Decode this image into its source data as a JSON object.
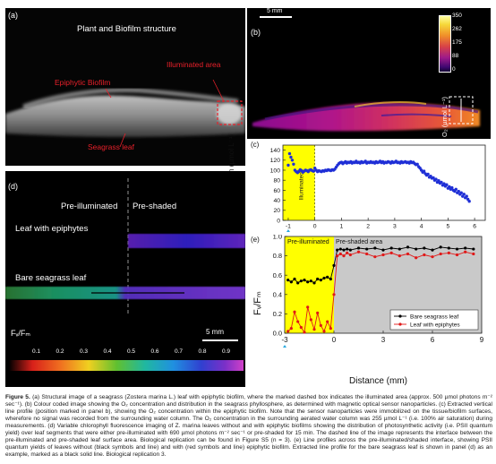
{
  "panel_a": {
    "letter": "(a)",
    "title": "Plant and Biofilm structure",
    "label_epiphytic": "Epiphytic Biofilm",
    "label_illuminated": "Illuminated area",
    "label_seagrass": "Seagrass leaf"
  },
  "panel_b": {
    "letter": "(b)",
    "scalebar": "5 mm",
    "colorbar_ticks": [
      "350",
      "262",
      "175",
      "88",
      "0"
    ],
    "colorbar_title": "O₂ (µmol L⁻¹)"
  },
  "panel_c": {
    "letter": "(c)",
    "ylabel": "O₂ concentration (µmol L⁻¹)",
    "yticks": [
      "140",
      "120",
      "100",
      "80",
      "60",
      "40",
      "20",
      "0"
    ],
    "xticks": [
      "-1",
      "0",
      "1",
      "2",
      "3",
      "4",
      "5",
      "6"
    ],
    "illuminated_label": "Illuminated",
    "color_points": "#1f2fd6",
    "color_illuminated": "#ffff00"
  },
  "panel_d": {
    "letter": "(d)",
    "pre_illuminated": "Pre-illuminated",
    "pre_shaded": "Pre-shaded",
    "leaf_epiphytes": "Leaf with epiphytes",
    "bare_leaf": "Bare seagrass leaf",
    "scalebar": "5 mm",
    "colorbar_title": "Fᵥ/Fₘ",
    "colorbar_ticks": [
      "0.1",
      "0.2",
      "0.3",
      "0.4",
      "0.5",
      "0.6",
      "0.7",
      "0.8",
      "0.9"
    ]
  },
  "panel_e": {
    "letter": "(e)",
    "pre_illuminated": "Pre-illuminated",
    "pre_shaded_area": "Pre-shaded area",
    "ylabel": "Fᵥ/Fₘ",
    "yticks": [
      "1.0",
      "0.8",
      "0.6",
      "0.4",
      "0.2",
      "0.0"
    ],
    "xticks": [
      "-3",
      "0",
      "3",
      "6",
      "9"
    ],
    "xlabel": "Distance (mm)",
    "legend_bare": "Bare seagrass leaf",
    "legend_epi": "Leaf with epiphytes",
    "color_bare": "#000000",
    "color_epi": "#e01818",
    "color_shaded_bg": "#c9c9c9",
    "color_illuminated": "#ffff00"
  },
  "caption": {
    "figure_label": "Figure 5.",
    "text": "(a) Structural image of a seagrass (Zostera marina L.) leaf with epiphytic biofilm, where the marked dashed box indicates the illuminated area (approx. 500 µmol photons m⁻² sec⁻¹). (b) Colour coded image showing the O₂ concentration and distribution in the seagrass phyllosphere, as determined with magnetic optical sensor nanoparticles. (c) Extracted vertical line profile (position marked in panel b), showing the O₂ concentration within the epiphytic biofilm. Note that the sensor nanoparticles were immobilized on the tissue/biofilm surfaces, wherefore no signal was recorded from the surrounding water column. The O₂ concentration in the surrounding aerated water column was 255 µmol L⁻¹ (i.e. 100% air saturation) during measurements. (d) Variable chlorophyll fluorescence imaging of Z. marina leaves without and with epiphytic biofilms showing the distribution of photosynthetic activity (i.e. PSII quantum yield) over leaf segments that were either pre-illuminated with 690 µmol photons m⁻² sec⁻¹ or pre-shaded for 15 min. The dashed line of the image represents the interface between the pre-illuminated and pre-shaded leaf surface area. Biological replication can be found in Figure S5 (n = 3). (e) Line profiles across the pre-illuminated/shaded interface, showing PSII quantum yields of leaves without (black symbols and line) and with (red symbols and line) epiphytic biofilm. Extracted line profile for the bare seagrass leaf is shown in panel (d) as an example, marked as a black solid line. Biological replication 3."
  },
  "chart_data": [
    {
      "type": "scatter",
      "panel": "(c)",
      "ylabel": "O₂ concentration (µmol L⁻¹)",
      "xlim": [
        -1.2,
        6.4
      ],
      "ylim": [
        0,
        150
      ],
      "illuminated_region": [
        -1.2,
        0
      ],
      "series": [
        {
          "points": [
            [
              -1.0,
              110
            ],
            [
              -0.95,
              133
            ],
            [
              -0.9,
              126
            ],
            [
              -0.85,
              120
            ],
            [
              -0.8,
              112
            ],
            [
              -0.75,
              100
            ],
            [
              -0.7,
              97
            ],
            [
              -0.65,
              95
            ],
            [
              -0.6,
              98
            ],
            [
              -0.55,
              101
            ],
            [
              -0.5,
              99
            ],
            [
              -0.45,
              96
            ],
            [
              -0.4,
              98
            ],
            [
              -0.35,
              100
            ],
            [
              -0.3,
              99
            ],
            [
              -0.25,
              97
            ],
            [
              -0.2,
              100
            ],
            [
              -0.15,
              101
            ],
            [
              -0.1,
              99
            ],
            [
              -0.05,
              98
            ],
            [
              0.0,
              104
            ],
            [
              0.05,
              100
            ],
            [
              0.1,
              97
            ],
            [
              0.15,
              99
            ],
            [
              0.2,
              98
            ],
            [
              0.25,
              97
            ],
            [
              0.3,
              99
            ],
            [
              0.35,
              98
            ],
            [
              0.4,
              100
            ],
            [
              0.45,
              99
            ],
            [
              0.5,
              101
            ],
            [
              0.55,
              100
            ],
            [
              0.6,
              99
            ],
            [
              0.65,
              101
            ],
            [
              0.7,
              100
            ],
            [
              0.75,
              102
            ],
            [
              0.8,
              106
            ],
            [
              0.85,
              110
            ],
            [
              0.9,
              113
            ],
            [
              0.95,
              115
            ],
            [
              1.0,
              116
            ],
            [
              1.05,
              113
            ],
            [
              1.1,
              115
            ],
            [
              1.15,
              117
            ],
            [
              1.2,
              114
            ],
            [
              1.25,
              116
            ],
            [
              1.3,
              115
            ],
            [
              1.35,
              117
            ],
            [
              1.4,
              114
            ],
            [
              1.45,
              116
            ],
            [
              1.5,
              115
            ],
            [
              1.55,
              118
            ],
            [
              1.6,
              115
            ],
            [
              1.65,
              116
            ],
            [
              1.7,
              114
            ],
            [
              1.75,
              117
            ],
            [
              1.8,
              115
            ],
            [
              1.85,
              116
            ],
            [
              1.9,
              118
            ],
            [
              1.95,
              114
            ],
            [
              2.0,
              116
            ],
            [
              2.05,
              115
            ],
            [
              2.1,
              117
            ],
            [
              2.15,
              115
            ],
            [
              2.2,
              116
            ],
            [
              2.25,
              114
            ],
            [
              2.3,
              117
            ],
            [
              2.35,
              115
            ],
            [
              2.4,
              116
            ],
            [
              2.45,
              118
            ],
            [
              2.5,
              115
            ],
            [
              2.55,
              117
            ],
            [
              2.6,
              114
            ],
            [
              2.65,
              116
            ],
            [
              2.7,
              115
            ],
            [
              2.75,
              117
            ],
            [
              2.8,
              116
            ],
            [
              2.85,
              114
            ],
            [
              2.9,
              117
            ],
            [
              2.95,
              115
            ],
            [
              3.0,
              116
            ],
            [
              3.05,
              118
            ],
            [
              3.1,
              115
            ],
            [
              3.15,
              116
            ],
            [
              3.2,
              114
            ],
            [
              3.25,
              117
            ],
            [
              3.3,
              115
            ],
            [
              3.35,
              116
            ],
            [
              3.4,
              117
            ],
            [
              3.45,
              115
            ],
            [
              3.5,
              116
            ],
            [
              3.55,
              114
            ],
            [
              3.6,
              117
            ],
            [
              3.65,
              115
            ],
            [
              3.7,
              116
            ],
            [
              3.75,
              113
            ],
            [
              3.8,
              111
            ],
            [
              3.85,
              112
            ],
            [
              3.9,
              107
            ],
            [
              3.95,
              104
            ],
            [
              4.0,
              100
            ],
            [
              4.05,
              96
            ],
            [
              4.1,
              98
            ],
            [
              4.15,
              93
            ],
            [
              4.2,
              90
            ],
            [
              4.25,
              92
            ],
            [
              4.3,
              86
            ],
            [
              4.35,
              88
            ],
            [
              4.4,
              84
            ],
            [
              4.45,
              85
            ],
            [
              4.5,
              80
            ],
            [
              4.55,
              82
            ],
            [
              4.6,
              76
            ],
            [
              4.65,
              79
            ],
            [
              4.7,
              74
            ],
            [
              4.75,
              76
            ],
            [
              4.8,
              70
            ],
            [
              4.85,
              73
            ],
            [
              4.9,
              68
            ],
            [
              4.95,
              71
            ],
            [
              5.0,
              64
            ],
            [
              5.05,
              67
            ],
            [
              5.1,
              62
            ],
            [
              5.15,
              65
            ],
            [
              5.2,
              60
            ],
            [
              5.25,
              58
            ],
            [
              5.3,
              62
            ],
            [
              5.35,
              55
            ],
            [
              5.4,
              58
            ],
            [
              5.45,
              52
            ],
            [
              5.5,
              55
            ],
            [
              5.55,
              48
            ],
            [
              5.6,
              52
            ],
            [
              5.65,
              45
            ],
            [
              5.7,
              48
            ],
            [
              5.75,
              42
            ],
            [
              5.8,
              38
            ]
          ]
        }
      ]
    },
    {
      "type": "line",
      "panel": "(e)",
      "xlabel": "Distance (mm)",
      "ylabel": "Fᵥ/Fₘ",
      "xlim": [
        -3,
        9
      ],
      "ylim": [
        0.0,
        1.0
      ],
      "pre_illuminated_region": [
        -3,
        0
      ],
      "legend_position": "bottom-right",
      "series": [
        {
          "name": "Bare seagrass leaf",
          "x": [
            -2.8,
            -2.6,
            -2.4,
            -2.2,
            -2.0,
            -1.8,
            -1.6,
            -1.4,
            -1.2,
            -1.0,
            -0.8,
            -0.6,
            -0.4,
            -0.2,
            0.0,
            0.2,
            0.4,
            0.6,
            0.8,
            1.0,
            1.5,
            2.0,
            2.5,
            3.0,
            3.5,
            4.0,
            4.5,
            5.0,
            5.5,
            6.0,
            6.5,
            7.0,
            7.5,
            8.0,
            8.5
          ],
          "y": [
            0.55,
            0.53,
            0.56,
            0.52,
            0.54,
            0.55,
            0.53,
            0.54,
            0.52,
            0.56,
            0.55,
            0.57,
            0.58,
            0.56,
            0.7,
            0.86,
            0.87,
            0.86,
            0.87,
            0.86,
            0.88,
            0.87,
            0.88,
            0.86,
            0.88,
            0.87,
            0.89,
            0.87,
            0.88,
            0.86,
            0.89,
            0.88,
            0.87,
            0.88,
            0.87
          ]
        },
        {
          "name": "Leaf with epiphytes",
          "x": [
            -2.8,
            -2.6,
            -2.4,
            -2.2,
            -2.0,
            -1.8,
            -1.6,
            -1.4,
            -1.2,
            -1.0,
            -0.8,
            -0.6,
            -0.4,
            -0.2,
            0.0,
            0.2,
            0.4,
            0.6,
            0.8,
            1.0,
            1.5,
            2.0,
            2.5,
            3.0,
            3.5,
            4.0,
            4.5,
            5.0,
            5.5,
            6.0,
            6.5,
            7.0,
            7.5,
            8.0,
            8.5
          ],
          "y": [
            0.02,
            0.05,
            0.22,
            0.12,
            0.06,
            0.01,
            0.27,
            0.14,
            0.04,
            0.21,
            0.08,
            0.02,
            0.12,
            0.05,
            0.4,
            0.8,
            0.82,
            0.8,
            0.83,
            0.81,
            0.84,
            0.82,
            0.79,
            0.81,
            0.83,
            0.8,
            0.82,
            0.78,
            0.81,
            0.79,
            0.82,
            0.83,
            0.81,
            0.84,
            0.82
          ]
        }
      ]
    }
  ]
}
